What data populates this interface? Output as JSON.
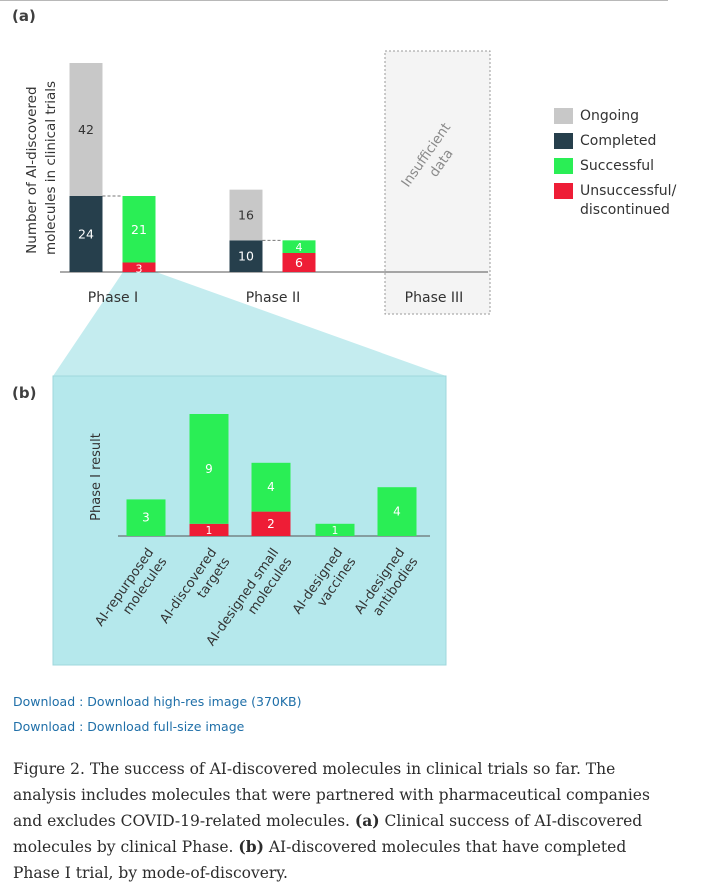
{
  "figure": {
    "panel_a_label": "(a)",
    "panel_b_label": "(b)",
    "insufficient_data_label": "Insufficient data",
    "phase3_label": "Phase III"
  },
  "legend": {
    "items": [
      {
        "label": "Ongoing",
        "color": "#c8c8c8"
      },
      {
        "label": "Completed",
        "color": "#263f4c"
      },
      {
        "label": "Successful",
        "color": "#2aee55"
      },
      {
        "label": "Unsuccessful/ discontinued",
        "color": "#ee1d36"
      }
    ]
  },
  "chart_data": [
    {
      "type": "bar",
      "title": "(a)",
      "ylabel": "Number of AI-discovered molecules in clinical trials",
      "xlabel": "",
      "categories": [
        "Phase I",
        "Phase II",
        "Phase III"
      ],
      "ylim": [
        0,
        66
      ],
      "stacks": [
        {
          "category": "Phase I",
          "bar": "status",
          "segments": [
            {
              "name": "Completed",
              "value": 24
            },
            {
              "name": "Ongoing",
              "value": 42
            }
          ]
        },
        {
          "category": "Phase I",
          "bar": "outcome",
          "segments": [
            {
              "name": "Unsuccessful/discontinued",
              "value": 3
            },
            {
              "name": "Successful",
              "value": 21
            }
          ]
        },
        {
          "category": "Phase II",
          "bar": "status",
          "segments": [
            {
              "name": "Completed",
              "value": 10
            },
            {
              "name": "Ongoing",
              "value": 16
            }
          ]
        },
        {
          "category": "Phase II",
          "bar": "outcome",
          "segments": [
            {
              "name": "Unsuccessful/discontinued",
              "value": 6
            },
            {
              "name": "Successful",
              "value": 4
            }
          ]
        }
      ],
      "annotations": [
        "Insufficient data"
      ]
    },
    {
      "type": "bar",
      "title": "(b)",
      "ylabel": "Phase I result",
      "xlabel": "",
      "categories": [
        "AI-repurposed molecules",
        "AI-discovered targets",
        "AI-designed small molecules",
        "AI-designed vaccines",
        "AI-designed antibodies"
      ],
      "ylim": [
        0,
        10
      ],
      "series": [
        {
          "name": "Unsuccessful/discontinued",
          "values": [
            0,
            1,
            2,
            0,
            0
          ]
        },
        {
          "name": "Successful",
          "values": [
            3,
            9,
            4,
            1,
            4
          ]
        }
      ]
    }
  ],
  "downloads": [
    {
      "label": "Download : Download high-res image (370KB)"
    },
    {
      "label": "Download : Download full-size image"
    }
  ],
  "caption": {
    "lead": "Figure 2. The success of AI-discovered molecules in clinical trials so far. The analysis includes molecules that were partnered with pharmaceutical companies and excludes COVID-19-related molecules. ",
    "a_label": "(a)",
    "a_text": " Clinical success of AI-discovered molecules by clinical Phase. ",
    "b_label": "(b)",
    "b_text": " AI-discovered molecules that have completed Phase I trial, by mode-of-discovery."
  }
}
